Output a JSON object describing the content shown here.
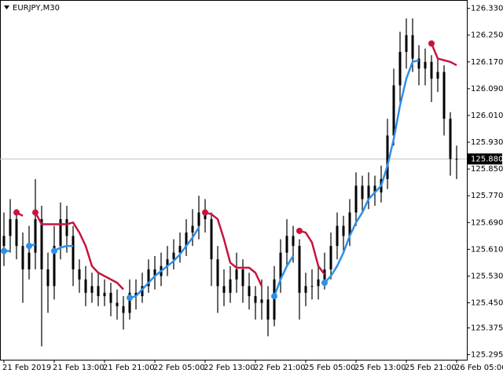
{
  "chart_data": {
    "type": "candlestick",
    "title": "EURJPY,M30",
    "categories": [
      "21 Feb 2019",
      null,
      null,
      null,
      null,
      null,
      null,
      null,
      "21 Feb 13:00",
      null,
      null,
      null,
      null,
      null,
      null,
      null,
      "21 Feb 21:00",
      null,
      null,
      null,
      null,
      null,
      null,
      null,
      "22 Feb 05:00",
      null,
      null,
      null,
      null,
      null,
      null,
      null,
      "22 Feb 13:00",
      null,
      null,
      null,
      null,
      null,
      null,
      null,
      "22 Feb 21:00",
      null,
      null,
      null,
      null,
      null,
      null,
      null,
      "25 Feb 05:00",
      null,
      null,
      null,
      null,
      null,
      null,
      null,
      "25 Feb 13:00",
      null,
      null,
      null,
      null,
      null,
      null,
      null,
      "25 Feb 21:00",
      null,
      null,
      null,
      null,
      null,
      null,
      null,
      "26 Feb 05:00"
    ],
    "open": [
      125.62,
      125.65,
      125.7,
      125.62,
      125.55,
      125.6,
      125.7,
      125.55,
      125.5,
      125.62,
      125.7,
      125.65,
      125.55,
      125.52,
      125.48,
      125.5,
      125.47,
      125.48,
      125.45,
      125.44,
      125.42,
      125.48,
      125.47,
      125.5,
      125.55,
      125.53,
      125.56,
      125.58,
      125.6,
      125.62,
      125.66,
      125.68,
      125.72,
      125.7,
      125.58,
      125.5,
      125.48,
      125.52,
      125.55,
      125.5,
      125.47,
      125.45,
      125.46,
      125.4,
      125.52,
      125.6,
      125.65,
      125.62,
      125.48,
      125.5,
      125.5,
      125.52,
      125.55,
      125.62,
      125.68,
      125.65,
      125.72,
      125.8,
      125.76,
      125.8,
      125.78,
      125.82,
      125.95,
      126.1,
      126.2,
      126.25,
      126.18,
      126.15,
      126.17,
      126.12,
      126.14,
      126.0,
      125.88
    ],
    "high": [
      125.72,
      125.76,
      125.73,
      125.66,
      125.68,
      125.82,
      125.74,
      125.6,
      125.68,
      125.75,
      125.74,
      125.68,
      125.58,
      125.56,
      125.54,
      125.54,
      125.52,
      125.51,
      125.49,
      125.47,
      125.52,
      125.52,
      125.54,
      125.58,
      125.59,
      125.6,
      125.62,
      125.64,
      125.66,
      125.7,
      125.73,
      125.77,
      125.76,
      125.72,
      125.62,
      125.55,
      125.56,
      125.6,
      125.58,
      125.54,
      125.5,
      125.52,
      125.5,
      125.56,
      125.64,
      125.7,
      125.68,
      125.64,
      125.54,
      125.55,
      125.56,
      125.6,
      125.66,
      125.72,
      125.71,
      125.76,
      125.84,
      125.83,
      125.84,
      125.83,
      125.86,
      126.0,
      126.15,
      126.26,
      126.3,
      126.3,
      126.22,
      126.21,
      126.19,
      126.18,
      126.16,
      126.02,
      125.92
    ],
    "low": [
      125.56,
      125.6,
      125.58,
      125.45,
      125.52,
      125.55,
      125.32,
      125.42,
      125.46,
      125.58,
      125.6,
      125.5,
      125.48,
      125.44,
      125.45,
      125.44,
      125.44,
      125.41,
      125.4,
      125.37,
      125.4,
      125.43,
      125.45,
      125.48,
      125.49,
      125.5,
      125.53,
      125.55,
      125.57,
      125.59,
      125.62,
      125.64,
      125.66,
      125.5,
      125.42,
      125.44,
      125.45,
      125.48,
      125.45,
      125.43,
      125.4,
      125.4,
      125.35,
      125.38,
      125.48,
      125.56,
      125.57,
      125.4,
      125.44,
      125.46,
      125.46,
      125.49,
      125.52,
      125.58,
      125.6,
      125.62,
      125.68,
      125.72,
      125.73,
      125.74,
      125.75,
      125.79,
      125.92,
      126.05,
      126.15,
      126.14,
      126.1,
      126.1,
      126.05,
      126.08,
      125.95,
      125.83,
      125.82
    ],
    "close": [
      125.65,
      125.7,
      125.62,
      125.55,
      125.6,
      125.7,
      125.55,
      125.5,
      125.62,
      125.7,
      125.65,
      125.55,
      125.52,
      125.48,
      125.5,
      125.47,
      125.48,
      125.45,
      125.44,
      125.42,
      125.48,
      125.47,
      125.5,
      125.55,
      125.53,
      125.56,
      125.58,
      125.6,
      125.62,
      125.66,
      125.68,
      125.72,
      125.7,
      125.58,
      125.5,
      125.48,
      125.52,
      125.55,
      125.5,
      125.47,
      125.45,
      125.46,
      125.4,
      125.52,
      125.6,
      125.65,
      125.62,
      125.48,
      125.5,
      125.5,
      125.52,
      125.55,
      125.62,
      125.68,
      125.65,
      125.72,
      125.8,
      125.76,
      125.8,
      125.78,
      125.82,
      125.95,
      126.1,
      126.2,
      126.25,
      126.18,
      126.15,
      126.17,
      126.12,
      126.14,
      126.0,
      125.88,
      125.88
    ],
    "color": "#000000",
    "series": [
      {
        "color": "#c8143c",
        "values": [
          null,
          null,
          125.72,
          125.71,
          null,
          125.72,
          125.685,
          125.685,
          125.685,
          125.685,
          125.685,
          125.69,
          125.66,
          125.62,
          125.56,
          125.54,
          125.53,
          125.52,
          125.51,
          125.49,
          null,
          null,
          null,
          null,
          null,
          null,
          null,
          null,
          null,
          null,
          null,
          null,
          125.72,
          125.715,
          125.7,
          125.64,
          125.57,
          125.555,
          125.555,
          125.555,
          125.54,
          125.5,
          null,
          null,
          null,
          null,
          null,
          125.665,
          125.66,
          125.63,
          125.56,
          125.535,
          null,
          null,
          null,
          null,
          null,
          null,
          null,
          null,
          null,
          null,
          null,
          null,
          null,
          null,
          null,
          null,
          126.225,
          126.18,
          126.175,
          126.17,
          126.16
        ]
      },
      {
        "color": "#2f8fe8",
        "values": [
          125.605,
          125.605,
          null,
          null,
          125.62,
          125.625,
          null,
          null,
          125.605,
          125.615,
          125.62,
          125.62,
          null,
          null,
          null,
          null,
          null,
          null,
          null,
          null,
          125.465,
          125.47,
          125.49,
          125.51,
          125.53,
          125.545,
          125.56,
          125.575,
          125.595,
          125.62,
          125.645,
          125.675,
          null,
          null,
          null,
          null,
          null,
          null,
          null,
          null,
          null,
          null,
          null,
          125.47,
          125.52,
          125.56,
          125.59,
          null,
          null,
          null,
          null,
          125.51,
          125.53,
          125.56,
          125.6,
          125.65,
          125.69,
          125.72,
          125.76,
          125.78,
          125.8,
          125.86,
          125.94,
          126.04,
          126.12,
          126.17,
          126.175,
          null,
          null,
          null,
          null,
          null,
          null
        ]
      }
    ],
    "ylim": [
      125.28,
      126.355
    ],
    "yticks": [
      {
        "value": 126.33,
        "label": "126.330"
      },
      {
        "value": 126.25,
        "label": "126.250"
      },
      {
        "value": 126.17,
        "label": "126.170"
      },
      {
        "value": 126.09,
        "label": "126.090"
      },
      {
        "value": 126.01,
        "label": "126.010"
      },
      {
        "value": 125.93,
        "label": "125.930"
      },
      {
        "value": 125.85,
        "label": "125.850"
      },
      {
        "value": 125.77,
        "label": "125.770"
      },
      {
        "value": 125.69,
        "label": "125.690"
      },
      {
        "value": 125.61,
        "label": "125.610"
      },
      {
        "value": 125.53,
        "label": "125.530"
      },
      {
        "value": 125.45,
        "label": "125.450"
      },
      {
        "value": 125.375,
        "label": "125.375"
      },
      {
        "value": 125.295,
        "label": "125.295"
      }
    ],
    "current_price": {
      "value": 125.88,
      "label": "125.880"
    }
  }
}
